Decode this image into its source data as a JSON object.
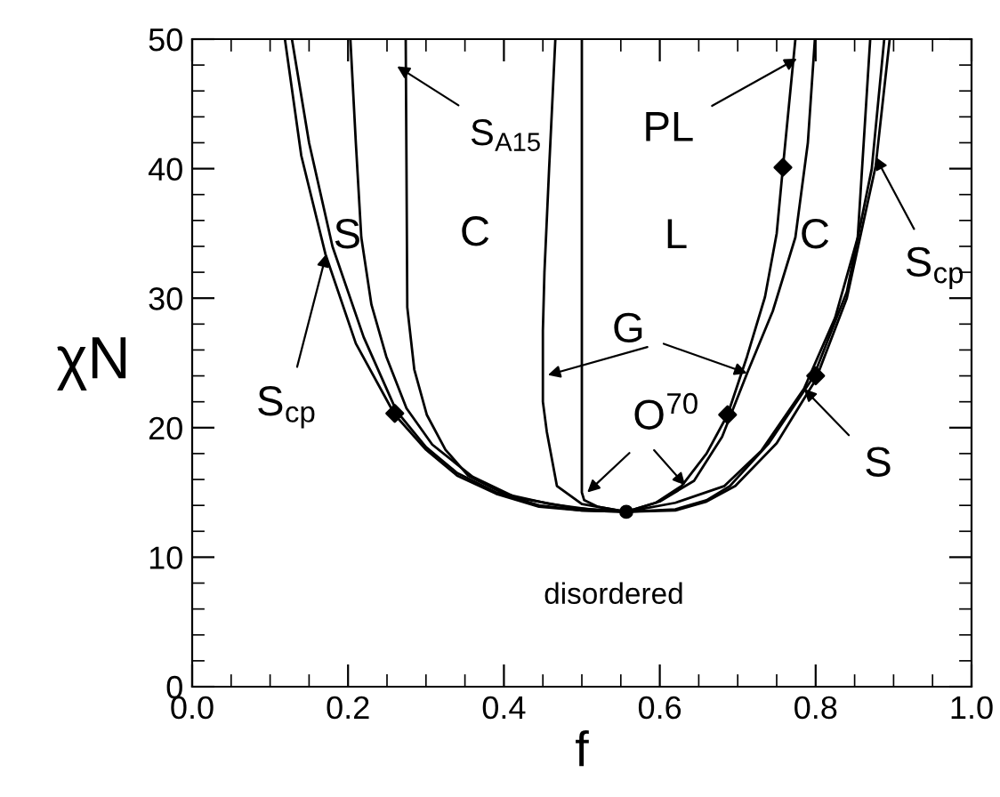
{
  "chart_data": {
    "type": "line",
    "xlabel": "f",
    "ylabel": "χN",
    "xlim": [
      0,
      1
    ],
    "ylim": [
      0,
      50
    ],
    "xticks": [
      {
        "value": 0,
        "label": "0.0"
      },
      {
        "value": 0.05,
        "label": null
      },
      {
        "value": 0.1,
        "label": null
      },
      {
        "value": 0.15,
        "label": null
      },
      {
        "value": 0.2,
        "label": "0.2"
      },
      {
        "value": 0.25,
        "label": null
      },
      {
        "value": 0.3,
        "label": null
      },
      {
        "value": 0.35,
        "label": null
      },
      {
        "value": 0.4,
        "label": "0.4"
      },
      {
        "value": 0.45,
        "label": null
      },
      {
        "value": 0.5,
        "label": null
      },
      {
        "value": 0.55,
        "label": null
      },
      {
        "value": 0.6,
        "label": "0.6"
      },
      {
        "value": 0.65,
        "label": null
      },
      {
        "value": 0.7,
        "label": null
      },
      {
        "value": 0.75,
        "label": null
      },
      {
        "value": 0.8,
        "label": "0.8"
      },
      {
        "value": 0.85,
        "label": null
      },
      {
        "value": 0.9,
        "label": null
      },
      {
        "value": 0.95,
        "label": null
      },
      {
        "value": 1.0,
        "label": "1.0"
      }
    ],
    "yticks": [
      0,
      {
        "value": 2,
        "label": null
      },
      {
        "value": 4,
        "label": null
      },
      {
        "value": 6,
        "label": null
      },
      {
        "value": 8,
        "label": null
      },
      10,
      {
        "value": 12,
        "label": null
      },
      {
        "value": 14,
        "label": null
      },
      {
        "value": 16,
        "label": null
      },
      {
        "value": 18,
        "label": null
      },
      20,
      {
        "value": 22,
        "label": null
      },
      {
        "value": 24,
        "label": null
      },
      {
        "value": 26,
        "label": null
      },
      {
        "value": 28,
        "label": null
      },
      30,
      {
        "value": 32,
        "label": null
      },
      {
        "value": 34,
        "label": null
      },
      {
        "value": 36,
        "label": null
      },
      {
        "value": 38,
        "label": null
      },
      40,
      {
        "value": 42,
        "label": null
      },
      {
        "value": 44,
        "label": null
      },
      {
        "value": 46,
        "label": null
      },
      {
        "value": 48,
        "label": null
      },
      50
    ],
    "grid": false,
    "marker": "none",
    "line_style": "solid",
    "series": [
      {
        "color": "#000000",
        "x": [
          0.119,
          0.14,
          0.171,
          0.21,
          0.26,
          0.3,
          0.34,
          0.39,
          0.445,
          0.5,
          0.557,
          0.62,
          0.66,
          0.697,
          0.75,
          0.8,
          0.84,
          0.877,
          0.895
        ],
        "values": [
          50,
          41,
          33.4,
          26.5,
          21.0,
          18.3,
          16.3,
          14.9,
          13.9,
          13.6,
          13.5,
          13.6,
          14.3,
          15.5,
          18.8,
          23.7,
          30,
          40.2,
          50
        ]
      },
      {
        "color": "#000000",
        "x": [
          0.128,
          0.15,
          0.18,
          0.22,
          0.262,
          0.3,
          0.34,
          0.39,
          0.445,
          0.5,
          0.557,
          0.62,
          0.66,
          0.69,
          0.74,
          0.797,
          0.84,
          0.872,
          0.888
        ],
        "values": [
          50,
          42,
          34,
          27,
          21.3,
          18.5,
          16.5,
          15.0,
          14.0,
          13.6,
          13.5,
          13.7,
          14.4,
          15.5,
          18.8,
          23.9,
          30.5,
          40,
          50
        ]
      },
      {
        "color": "#000000",
        "x": [
          0.203,
          0.21,
          0.217,
          0.23,
          0.249,
          0.275,
          0.308,
          0.36,
          0.416,
          0.49,
          0.557,
          0.62,
          0.683,
          0.73,
          0.785,
          0.825,
          0.854,
          0.87
        ],
        "values": [
          50,
          42,
          34.7,
          29.5,
          25.5,
          21.5,
          18.7,
          16.2,
          14.6,
          13.8,
          13.5,
          14.2,
          15.5,
          18.2,
          23.0,
          28.5,
          34.7,
          50
        ]
      },
      {
        "color": "#000000",
        "x": [
          0.274,
          0.275,
          0.276,
          0.285,
          0.301,
          0.325,
          0.354,
          0.4,
          0.459,
          0.51,
          0.557,
          0.6,
          0.644,
          0.68,
          0.712,
          0.745,
          0.774,
          0.79,
          0.799
        ],
        "values": [
          50,
          40,
          29.3,
          24.5,
          21.0,
          18.3,
          16.3,
          14.9,
          14.1,
          13.7,
          13.5,
          14.3,
          15.9,
          19.3,
          24.2,
          29,
          34.7,
          42,
          50
        ]
      },
      {
        "color": "#000000",
        "x": [
          0.466,
          0.458,
          0.452,
          0.45,
          0.45,
          0.455,
          0.468,
          0.5,
          0.557,
          0.595,
          0.628,
          0.66,
          0.687,
          0.712,
          0.735,
          0.75,
          0.758,
          0.774
        ],
        "values": [
          50,
          40,
          32,
          27.5,
          22,
          19.7,
          15.5,
          14.1,
          13.5,
          14.2,
          15.5,
          18,
          21,
          25.5,
          30.1,
          35,
          40.1,
          50
        ]
      },
      {
        "color": "#000000",
        "x": [
          0.5,
          0.5,
          0.5,
          0.503,
          0.52,
          0.557
        ],
        "values": [
          50,
          30,
          15,
          14.4,
          13.9,
          13.5
        ]
      },
      {
        "type": "scatter",
        "marker": "diamond",
        "color": "#000000",
        "x": [
          0.26,
          0.687,
          0.758,
          0.8
        ],
        "values": [
          21.1,
          21,
          40.1,
          24.0
        ]
      },
      {
        "type": "scatter",
        "marker": "circle",
        "color": "#000000",
        "x": [
          0.557
        ],
        "values": [
          13.5
        ]
      }
    ],
    "annotations": [
      "S",
      "C",
      "L",
      "C",
      "disordered",
      {
        "text": "S$_{cp}$",
        "x": 0.172,
        "y": 33.4
      },
      {
        "text": "S$_{A15}$",
        "x": 0.263,
        "y": 47.9
      },
      {
        "text": "PL",
        "x": 0.776,
        "y": 48.5
      },
      {
        "text": "G",
        "x": 0.712,
        "y": 24.2
      },
      {
        "text": "O$^{70}$",
        "x": 0.507,
        "y": 15.0
      },
      {
        "text": "S$_{cp}$",
        "x": 0.877,
        "y": 40.9
      },
      {
        "text": "S",
        "x": 0.785,
        "y": 23.0
      }
    ]
  }
}
